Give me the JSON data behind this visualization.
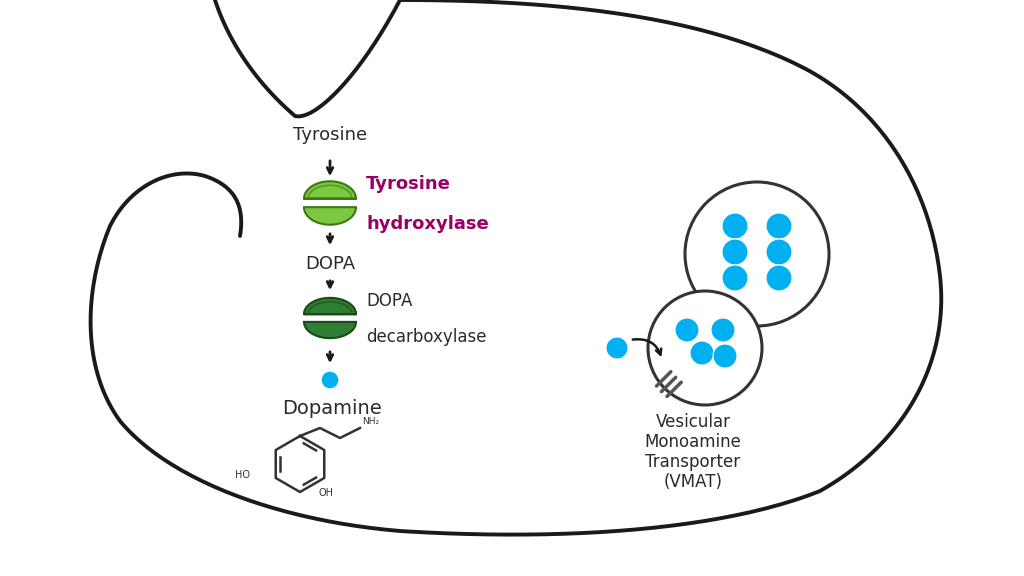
{
  "bg_color": "#ffffff",
  "cell_outline_color": "#1a1a1a",
  "arrow_color": "#1a1a1a",
  "text_color": "#2a2a2a",
  "enzyme1_color": "#7dc843",
  "enzyme1_edge": "#3a7a10",
  "enzyme2_color": "#2e7d32",
  "enzyme2_edge": "#1a4a1a",
  "th_color": "#990066",
  "dot_color": "#00b0f0",
  "labels": {
    "tyrosine": "Tyrosine",
    "enzyme1_line1": "Tyrosine",
    "enzyme1_line2": "hydroxylase",
    "dopa": "DOPA",
    "enzyme2_line1": "DOPA",
    "enzyme2_line2": "decarboxylase",
    "dopamine": "Dopamine",
    "vmat_line1": "Vesicular",
    "vmat_line2": "Monoamine",
    "vmat_line3": "Transporter",
    "vmat_line4": "(VMAT)"
  },
  "cell_lw": 2.8,
  "enzyme_lw": 1.5,
  "arrow_lw": 2.0,
  "dot_r": 0.055,
  "vesicle_dot_r": 0.048,
  "fs_main": 13,
  "fs_enzyme": 12,
  "fs_th": 13,
  "fs_vmat": 12,
  "fs_dopamine_label": 14,
  "fs_chem": 6.5
}
